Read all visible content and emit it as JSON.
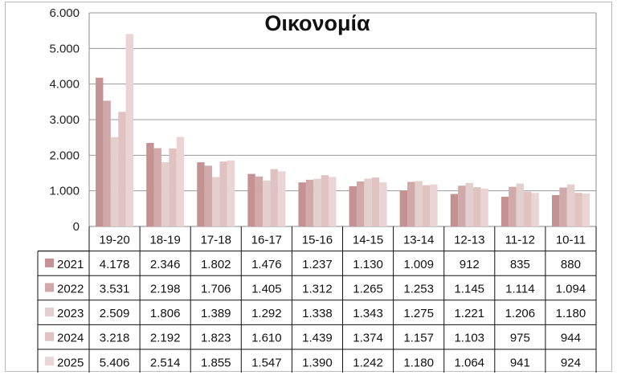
{
  "chart_data": {
    "type": "bar",
    "title": "Οικονομία",
    "categories": [
      "19-20",
      "18-19",
      "17-18",
      "16-17",
      "15-16",
      "14-15",
      "13-14",
      "12-13",
      "11-12",
      "10-11"
    ],
    "ylim": [
      0,
      6000
    ],
    "yticks": [
      "0",
      "1.000",
      "2.000",
      "3.000",
      "4.000",
      "5.000",
      "6.000"
    ],
    "grid": true,
    "legend": "data-table",
    "series": [
      {
        "name": "2021",
        "color": "#c49292",
        "values": [
          4178,
          2346,
          1802,
          1476,
          1237,
          1130,
          1009,
          912,
          835,
          880
        ],
        "labels": [
          "4.178",
          "2.346",
          "1.802",
          "1.476",
          "1.237",
          "1.130",
          "1.009",
          "912",
          "835",
          "880"
        ]
      },
      {
        "name": "2022",
        "color": "#d2a9a9",
        "values": [
          3531,
          2198,
          1706,
          1405,
          1312,
          1265,
          1253,
          1145,
          1114,
          1094
        ],
        "labels": [
          "3.531",
          "2.198",
          "1.706",
          "1.405",
          "1.312",
          "1.265",
          "1.253",
          "1.145",
          "1.114",
          "1.094"
        ]
      },
      {
        "name": "2023",
        "color": "#e4cfcf",
        "values": [
          2509,
          1806,
          1389,
          1292,
          1338,
          1343,
          1275,
          1221,
          1206,
          1180
        ],
        "labels": [
          "2.509",
          "1.806",
          "1.389",
          "1.292",
          "1.338",
          "1.343",
          "1.275",
          "1.221",
          "1.206",
          "1.180"
        ]
      },
      {
        "name": "2024",
        "color": "#e0c2c2",
        "values": [
          3218,
          2192,
          1823,
          1610,
          1439,
          1374,
          1157,
          1103,
          975,
          944
        ],
        "labels": [
          "3.218",
          "2.192",
          "1.823",
          "1.610",
          "1.439",
          "1.374",
          "1.157",
          "1.103",
          "975",
          "944"
        ]
      },
      {
        "name": "2025",
        "color": "#ead4d4",
        "values": [
          5406,
          2514,
          1855,
          1547,
          1390,
          1242,
          1180,
          1064,
          941,
          924
        ],
        "labels": [
          "5.406",
          "2.514",
          "1.855",
          "1.547",
          "1.390",
          "1.242",
          "1.180",
          "1.064",
          "941",
          "924"
        ]
      }
    ]
  }
}
